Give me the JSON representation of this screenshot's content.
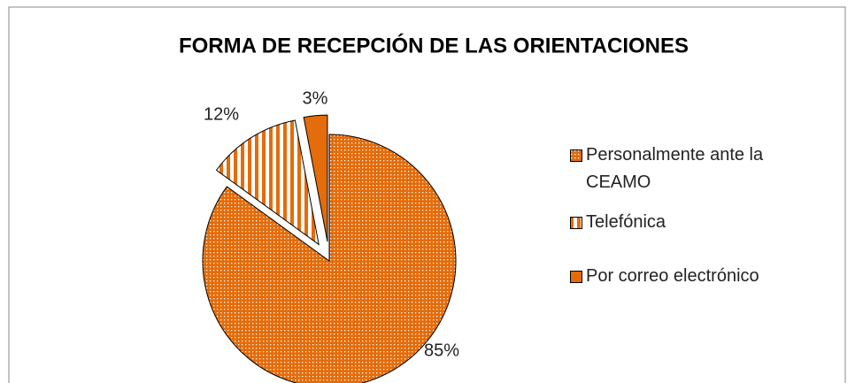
{
  "chart_data": {
    "type": "pie",
    "title": "FORMA DE RECEPCIÓN DE LAS ORIENTACIONES",
    "categories": [
      "Personalmente ante la CEAMO",
      "Telefónica",
      "Por correo electrónico"
    ],
    "values": [
      85,
      12,
      3
    ],
    "value_labels": [
      "85%",
      "12%",
      "3%"
    ],
    "colors": [
      "#e46c0a",
      "#e46c0a",
      "#e46c0a"
    ],
    "patterns": [
      "dots",
      "vertical-stripes",
      "solid"
    ],
    "legend": "right"
  }
}
